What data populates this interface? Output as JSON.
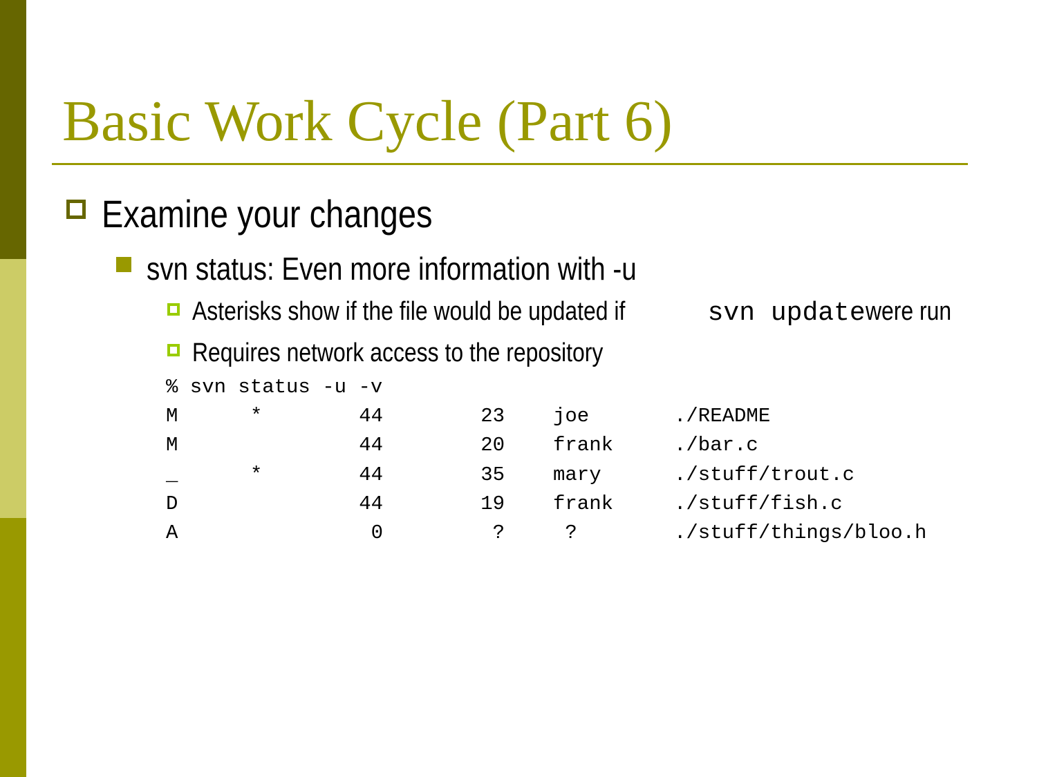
{
  "title": "Basic Work Cycle (Part 6)",
  "bullets": {
    "level1": "Examine your changes",
    "level2": "svn status: Even more information with -u",
    "level3_1": {
      "before": "Asterisks show if the file would be updated if ",
      "code": "svn update",
      "after": " were run"
    },
    "level3_2": "Requires network access to the repository"
  },
  "command": "% svn status -u -v",
  "status_rows": [
    {
      "status": "M",
      "star": "*",
      "rev": "44",
      "last": "23",
      "author": "joe",
      "path": "./README"
    },
    {
      "status": "M",
      "star": "",
      "rev": "44",
      "last": "20",
      "author": "frank",
      "path": "./bar.c"
    },
    {
      "status": "_",
      "star": "*",
      "rev": "44",
      "last": "35",
      "author": "mary",
      "path": "./stuff/trout.c"
    },
    {
      "status": "D",
      "star": "",
      "rev": "44",
      "last": "19",
      "author": "frank",
      "path": "./stuff/fish.c"
    },
    {
      "status": "A",
      "star": "",
      "rev": "0",
      "last": "?",
      "author": " ?",
      "path": "./stuff/things/bloo.h"
    }
  ],
  "colors": {
    "title": "#999900",
    "band_top": "#666600",
    "band_mid": "#cccc66",
    "band_bottom": "#999900",
    "bullet_l3": "#99cc00"
  }
}
